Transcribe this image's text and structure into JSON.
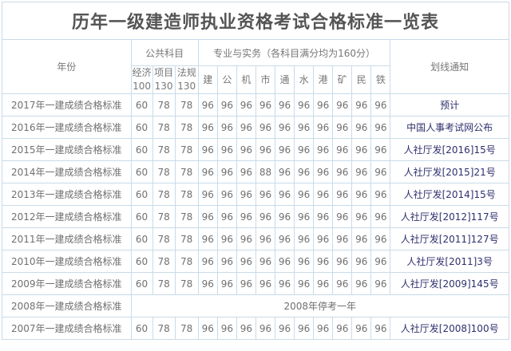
{
  "title": "历年一级建造师执业资格考试合格标准一览表",
  "header": {
    "year": "年份",
    "public": "公共科目",
    "professional": "专业与实务（各科目满分均为160分）",
    "notice": "划线通知",
    "public_subjects": [
      {
        "name": "经济",
        "full": "100"
      },
      {
        "name": "项目",
        "full": "130"
      },
      {
        "name": "法规",
        "full": "130"
      }
    ],
    "prof_subjects": [
      "建",
      "公",
      "机",
      "市",
      "通",
      "水",
      "港",
      "矿",
      "民",
      "铁"
    ]
  },
  "rows": [
    {
      "year": "2017年一建成绩合格标准",
      "scores": [
        "60",
        "78",
        "78",
        "96",
        "96",
        "96",
        "96",
        "96",
        "96",
        "96",
        "96",
        "96",
        "96"
      ],
      "notice": "预计"
    },
    {
      "year": "2016年一建成绩合格标准",
      "scores": [
        "60",
        "78",
        "78",
        "96",
        "96",
        "96",
        "96",
        "96",
        "96",
        "96",
        "96",
        "96",
        "96"
      ],
      "notice": "中国人事考试网公布"
    },
    {
      "year": "2015年一建成绩合格标准",
      "scores": [
        "60",
        "78",
        "78",
        "96",
        "96",
        "96",
        "96",
        "96",
        "96",
        "96",
        "96",
        "96",
        "96"
      ],
      "notice": "人社厅发[2016]15号"
    },
    {
      "year": "2014年一建成绩合格标准",
      "scores": [
        "60",
        "78",
        "78",
        "96",
        "96",
        "96",
        "88",
        "96",
        "96",
        "96",
        "96",
        "96",
        "96"
      ],
      "notice": "人社厅发[2015]21号"
    },
    {
      "year": "2013年一建成绩合格标准",
      "scores": [
        "60",
        "78",
        "78",
        "96",
        "96",
        "96",
        "96",
        "96",
        "96",
        "96",
        "96",
        "96",
        "96"
      ],
      "notice": "人社厅发[2014]15号"
    },
    {
      "year": "2012年一建成绩合格标准",
      "scores": [
        "60",
        "78",
        "78",
        "96",
        "96",
        "96",
        "96",
        "96",
        "96",
        "96",
        "96",
        "96",
        "96"
      ],
      "notice": "人社厅发[2012]117号"
    },
    {
      "year": "2011年一建成绩合格标准",
      "scores": [
        "60",
        "78",
        "78",
        "96",
        "96",
        "96",
        "96",
        "96",
        "96",
        "96",
        "96",
        "96",
        "96"
      ],
      "notice": "人社厅发[2011]127号"
    },
    {
      "year": "2010年一建成绩合格标准",
      "scores": [
        "60",
        "78",
        "78",
        "96",
        "96",
        "96",
        "96",
        "96",
        "96",
        "96",
        "96",
        "96",
        "96"
      ],
      "notice": "人社厅发[2011]3号"
    },
    {
      "year": "2009年一建成绩合格标准",
      "scores": [
        "60",
        "78",
        "78",
        "96",
        "96",
        "96",
        "96",
        "96",
        "96",
        "96",
        "96",
        "96",
        "96"
      ],
      "notice": "人社厅发[2009]145号"
    },
    {
      "year": "2008年一建成绩合格标准",
      "merged": "2008年停考一年"
    },
    {
      "year": "2007年一建成绩合格标准",
      "scores": [
        "60",
        "78",
        "78",
        "96",
        "96",
        "96",
        "96",
        "96",
        "96",
        "96",
        "96",
        "96",
        "96"
      ],
      "notice": "人社厅发[2008]100号"
    }
  ],
  "colors": {
    "border": "#c9dbe8",
    "text": "#707070",
    "notice": "#2f2f6e"
  }
}
